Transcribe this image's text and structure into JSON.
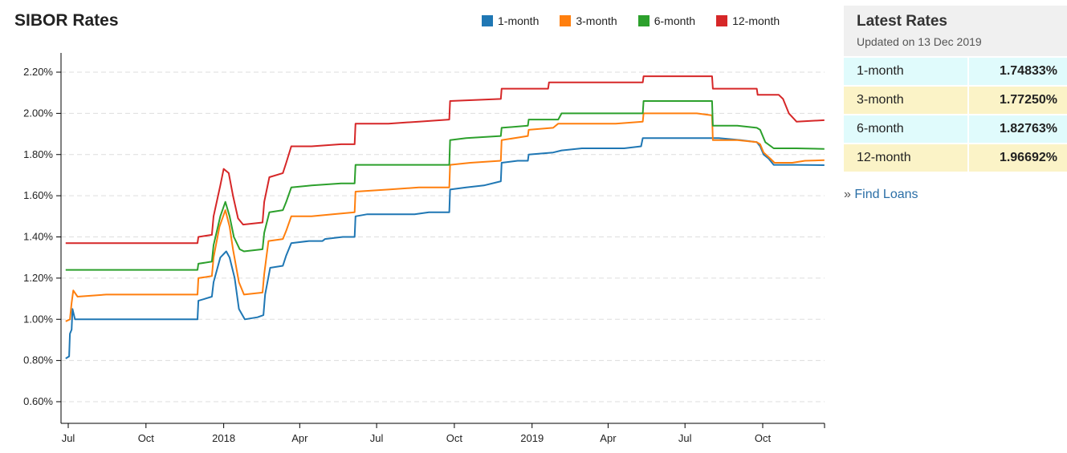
{
  "chart_data": {
    "type": "line",
    "title": "SIBOR Rates",
    "x_start": "2017-07-01",
    "x_end": "2019-12-13",
    "x_ticks": [
      {
        "date": "2017-07-01",
        "label": "Jul"
      },
      {
        "date": "2017-10-01",
        "label": "Oct"
      },
      {
        "date": "2018-01-01",
        "label": "2018"
      },
      {
        "date": "2018-04-01",
        "label": "Apr"
      },
      {
        "date": "2018-07-01",
        "label": "Jul"
      },
      {
        "date": "2018-10-01",
        "label": "Oct"
      },
      {
        "date": "2019-01-01",
        "label": "2019"
      },
      {
        "date": "2019-04-01",
        "label": "Apr"
      },
      {
        "date": "2019-07-01",
        "label": "Jul"
      },
      {
        "date": "2019-10-01",
        "label": "Oct"
      }
    ],
    "y_ticks": [
      {
        "value": 0.6,
        "label": "0.60%"
      },
      {
        "value": 0.8,
        "label": "0.80%"
      },
      {
        "value": 1.0,
        "label": "1.00%"
      },
      {
        "value": 1.2,
        "label": "1.20%"
      },
      {
        "value": 1.4,
        "label": "1.40%"
      },
      {
        "value": 1.6,
        "label": "1.60%"
      },
      {
        "value": 1.8,
        "label": "1.80%"
      },
      {
        "value": 2.0,
        "label": "2.00%"
      },
      {
        "value": 2.2,
        "label": "2.20%"
      }
    ],
    "ylim": [
      0.5,
      2.3
    ],
    "grid": "horizontal dashed",
    "legend_position": "top-right",
    "series": [
      {
        "name": "1-month",
        "color": "#1f77b4",
        "points": [
          [
            "2017-06-28",
            0.81
          ],
          [
            "2017-07-02",
            0.82
          ],
          [
            "2017-07-03",
            0.93
          ],
          [
            "2017-07-05",
            0.95
          ],
          [
            "2017-07-06",
            1.05
          ],
          [
            "2017-07-09",
            1.0
          ],
          [
            "2017-08-15",
            1.0
          ],
          [
            "2017-09-20",
            1.0
          ],
          [
            "2017-10-25",
            1.0
          ],
          [
            "2017-11-20",
            1.0
          ],
          [
            "2017-12-01",
            1.0
          ],
          [
            "2017-12-02",
            1.09
          ],
          [
            "2017-12-10",
            1.1
          ],
          [
            "2017-12-18",
            1.11
          ],
          [
            "2017-12-20",
            1.18
          ],
          [
            "2017-12-28",
            1.3
          ],
          [
            "2018-01-04",
            1.33
          ],
          [
            "2018-01-08",
            1.3
          ],
          [
            "2018-01-14",
            1.2
          ],
          [
            "2018-01-19",
            1.05
          ],
          [
            "2018-01-26",
            1.0
          ],
          [
            "2018-02-10",
            1.01
          ],
          [
            "2018-02-17",
            1.02
          ],
          [
            "2018-02-19",
            1.12
          ],
          [
            "2018-02-25",
            1.25
          ],
          [
            "2018-03-12",
            1.26
          ],
          [
            "2018-03-16",
            1.31
          ],
          [
            "2018-03-22",
            1.37
          ],
          [
            "2018-04-12",
            1.38
          ],
          [
            "2018-04-28",
            1.38
          ],
          [
            "2018-05-01",
            1.39
          ],
          [
            "2018-05-22",
            1.4
          ],
          [
            "2018-06-05",
            1.4
          ],
          [
            "2018-06-06",
            1.5
          ],
          [
            "2018-06-20",
            1.51
          ],
          [
            "2018-07-15",
            1.51
          ],
          [
            "2018-08-15",
            1.51
          ],
          [
            "2018-09-01",
            1.52
          ],
          [
            "2018-09-25",
            1.52
          ],
          [
            "2018-09-26",
            1.63
          ],
          [
            "2018-10-15",
            1.64
          ],
          [
            "2018-11-05",
            1.65
          ],
          [
            "2018-11-25",
            1.67
          ],
          [
            "2018-11-26",
            1.76
          ],
          [
            "2018-12-15",
            1.77
          ],
          [
            "2018-12-27",
            1.77
          ],
          [
            "2018-12-28",
            1.8
          ],
          [
            "2019-01-26",
            1.81
          ],
          [
            "2019-02-05",
            1.82
          ],
          [
            "2019-03-01",
            1.83
          ],
          [
            "2019-03-20",
            1.83
          ],
          [
            "2019-04-20",
            1.83
          ],
          [
            "2019-05-10",
            1.84
          ],
          [
            "2019-05-12",
            1.88
          ],
          [
            "2019-06-15",
            1.88
          ],
          [
            "2019-07-20",
            1.88
          ],
          [
            "2019-08-10",
            1.88
          ],
          [
            "2019-09-05",
            1.87
          ],
          [
            "2019-09-24",
            1.86
          ],
          [
            "2019-09-28",
            1.84
          ],
          [
            "2019-10-02",
            1.8
          ],
          [
            "2019-10-08",
            1.78
          ],
          [
            "2019-10-14",
            1.75
          ],
          [
            "2019-10-22",
            1.75
          ],
          [
            "2019-11-10",
            1.75
          ],
          [
            "2019-12-13",
            1.74833
          ]
        ]
      },
      {
        "name": "3-month",
        "color": "#ff7f0e",
        "points": [
          [
            "2017-06-28",
            0.99
          ],
          [
            "2017-07-03",
            1.0
          ],
          [
            "2017-07-05",
            1.08
          ],
          [
            "2017-07-07",
            1.14
          ],
          [
            "2017-07-12",
            1.11
          ],
          [
            "2017-08-15",
            1.12
          ],
          [
            "2017-09-20",
            1.12
          ],
          [
            "2017-10-25",
            1.12
          ],
          [
            "2017-11-20",
            1.12
          ],
          [
            "2017-12-01",
            1.12
          ],
          [
            "2017-12-02",
            1.2
          ],
          [
            "2017-12-18",
            1.21
          ],
          [
            "2017-12-20",
            1.3
          ],
          [
            "2017-12-27",
            1.45
          ],
          [
            "2018-01-03",
            1.53
          ],
          [
            "2018-01-08",
            1.45
          ],
          [
            "2018-01-12",
            1.34
          ],
          [
            "2018-01-19",
            1.18
          ],
          [
            "2018-01-25",
            1.12
          ],
          [
            "2018-02-16",
            1.13
          ],
          [
            "2018-02-18",
            1.22
          ],
          [
            "2018-02-23",
            1.38
          ],
          [
            "2018-03-12",
            1.39
          ],
          [
            "2018-03-16",
            1.43
          ],
          [
            "2018-03-22",
            1.5
          ],
          [
            "2018-04-15",
            1.5
          ],
          [
            "2018-05-10",
            1.51
          ],
          [
            "2018-06-05",
            1.52
          ],
          [
            "2018-06-06",
            1.62
          ],
          [
            "2018-07-15",
            1.63
          ],
          [
            "2018-08-20",
            1.64
          ],
          [
            "2018-09-25",
            1.64
          ],
          [
            "2018-09-26",
            1.75
          ],
          [
            "2018-10-20",
            1.76
          ],
          [
            "2018-11-25",
            1.77
          ],
          [
            "2018-11-26",
            1.87
          ],
          [
            "2018-12-27",
            1.89
          ],
          [
            "2018-12-28",
            1.92
          ],
          [
            "2019-01-26",
            1.93
          ],
          [
            "2019-02-01",
            1.95
          ],
          [
            "2019-03-01",
            1.95
          ],
          [
            "2019-04-10",
            1.95
          ],
          [
            "2019-05-12",
            1.96
          ],
          [
            "2019-05-13",
            2.0
          ],
          [
            "2019-06-10",
            2.0
          ],
          [
            "2019-07-15",
            2.0
          ],
          [
            "2019-08-02",
            1.99
          ],
          [
            "2019-08-03",
            1.87
          ],
          [
            "2019-09-01",
            1.87
          ],
          [
            "2019-09-24",
            1.86
          ],
          [
            "2019-09-28",
            1.85
          ],
          [
            "2019-10-02",
            1.81
          ],
          [
            "2019-10-10",
            1.78
          ],
          [
            "2019-10-15",
            1.76
          ],
          [
            "2019-11-05",
            1.76
          ],
          [
            "2019-11-20",
            1.77
          ],
          [
            "2019-12-13",
            1.7725
          ]
        ]
      },
      {
        "name": "6-month",
        "color": "#2ca02c",
        "points": [
          [
            "2017-06-28",
            1.24
          ],
          [
            "2017-08-01",
            1.24
          ],
          [
            "2017-09-15",
            1.24
          ],
          [
            "2017-11-01",
            1.24
          ],
          [
            "2017-12-01",
            1.24
          ],
          [
            "2017-12-02",
            1.27
          ],
          [
            "2017-12-18",
            1.28
          ],
          [
            "2017-12-20",
            1.36
          ],
          [
            "2017-12-28",
            1.5
          ],
          [
            "2018-01-03",
            1.57
          ],
          [
            "2018-01-08",
            1.5
          ],
          [
            "2018-01-13",
            1.4
          ],
          [
            "2018-01-20",
            1.34
          ],
          [
            "2018-01-25",
            1.33
          ],
          [
            "2018-02-16",
            1.34
          ],
          [
            "2018-02-18",
            1.42
          ],
          [
            "2018-02-24",
            1.52
          ],
          [
            "2018-03-12",
            1.53
          ],
          [
            "2018-03-16",
            1.57
          ],
          [
            "2018-03-22",
            1.64
          ],
          [
            "2018-04-15",
            1.65
          ],
          [
            "2018-05-20",
            1.66
          ],
          [
            "2018-06-05",
            1.66
          ],
          [
            "2018-06-06",
            1.75
          ],
          [
            "2018-07-15",
            1.75
          ],
          [
            "2018-08-20",
            1.75
          ],
          [
            "2018-09-25",
            1.75
          ],
          [
            "2018-09-26",
            1.87
          ],
          [
            "2018-10-15",
            1.88
          ],
          [
            "2018-11-25",
            1.89
          ],
          [
            "2018-11-26",
            1.93
          ],
          [
            "2018-12-27",
            1.94
          ],
          [
            "2018-12-28",
            1.97
          ],
          [
            "2019-02-01",
            1.97
          ],
          [
            "2019-02-05",
            2.0
          ],
          [
            "2019-03-20",
            2.0
          ],
          [
            "2019-04-20",
            2.0
          ],
          [
            "2019-05-12",
            2.0
          ],
          [
            "2019-05-13",
            2.06
          ],
          [
            "2019-06-15",
            2.06
          ],
          [
            "2019-07-20",
            2.06
          ],
          [
            "2019-08-02",
            2.06
          ],
          [
            "2019-08-03",
            1.94
          ],
          [
            "2019-09-01",
            1.94
          ],
          [
            "2019-09-24",
            1.93
          ],
          [
            "2019-09-28",
            1.92
          ],
          [
            "2019-10-04",
            1.86
          ],
          [
            "2019-10-14",
            1.83
          ],
          [
            "2019-11-10",
            1.83
          ],
          [
            "2019-12-13",
            1.82763
          ]
        ]
      },
      {
        "name": "12-month",
        "color": "#d62728",
        "points": [
          [
            "2017-06-28",
            1.37
          ],
          [
            "2017-08-01",
            1.37
          ],
          [
            "2017-09-15",
            1.37
          ],
          [
            "2017-11-01",
            1.37
          ],
          [
            "2017-12-01",
            1.37
          ],
          [
            "2017-12-02",
            1.4
          ],
          [
            "2017-12-18",
            1.41
          ],
          [
            "2017-12-20",
            1.5
          ],
          [
            "2017-12-28",
            1.65
          ],
          [
            "2018-01-01",
            1.73
          ],
          [
            "2018-01-07",
            1.71
          ],
          [
            "2018-01-12",
            1.6
          ],
          [
            "2018-01-18",
            1.49
          ],
          [
            "2018-01-24",
            1.46
          ],
          [
            "2018-02-16",
            1.47
          ],
          [
            "2018-02-18",
            1.57
          ],
          [
            "2018-02-24",
            1.69
          ],
          [
            "2018-03-12",
            1.71
          ],
          [
            "2018-03-16",
            1.76
          ],
          [
            "2018-03-22",
            1.84
          ],
          [
            "2018-04-15",
            1.84
          ],
          [
            "2018-05-20",
            1.85
          ],
          [
            "2018-06-05",
            1.85
          ],
          [
            "2018-06-06",
            1.95
          ],
          [
            "2018-07-15",
            1.95
          ],
          [
            "2018-08-20",
            1.96
          ],
          [
            "2018-09-25",
            1.97
          ],
          [
            "2018-09-26",
            2.06
          ],
          [
            "2018-11-25",
            2.07
          ],
          [
            "2018-11-26",
            2.12
          ],
          [
            "2018-12-31",
            2.12
          ],
          [
            "2019-01-01",
            2.12
          ],
          [
            "2019-01-20",
            2.12
          ],
          [
            "2019-01-21",
            2.15
          ],
          [
            "2019-03-01",
            2.15
          ],
          [
            "2019-04-10",
            2.15
          ],
          [
            "2019-05-12",
            2.15
          ],
          [
            "2019-05-13",
            2.18
          ],
          [
            "2019-06-15",
            2.18
          ],
          [
            "2019-07-20",
            2.18
          ],
          [
            "2019-08-02",
            2.18
          ],
          [
            "2019-08-03",
            2.12
          ],
          [
            "2019-09-01",
            2.12
          ],
          [
            "2019-09-24",
            2.12
          ],
          [
            "2019-09-25",
            2.09
          ],
          [
            "2019-10-20",
            2.09
          ],
          [
            "2019-10-25",
            2.07
          ],
          [
            "2019-11-01",
            2.0
          ],
          [
            "2019-11-10",
            1.96
          ],
          [
            "2019-12-13",
            1.96692
          ]
        ]
      }
    ]
  },
  "panel": {
    "title": "Latest Rates",
    "subtitle": "Updated on 13 Dec 2019",
    "rows": [
      {
        "name": "1-month",
        "value": "1.74833%",
        "bg": "#e0fbfc"
      },
      {
        "name": "3-month",
        "value": "1.77250%",
        "bg": "#fbf3c7"
      },
      {
        "name": "6-month",
        "value": "1.82763%",
        "bg": "#e0fbfc"
      },
      {
        "name": "12-month",
        "value": "1.96692%",
        "bg": "#fbf3c7"
      }
    ],
    "link_prefix": "»",
    "link_label": "Find Loans"
  }
}
